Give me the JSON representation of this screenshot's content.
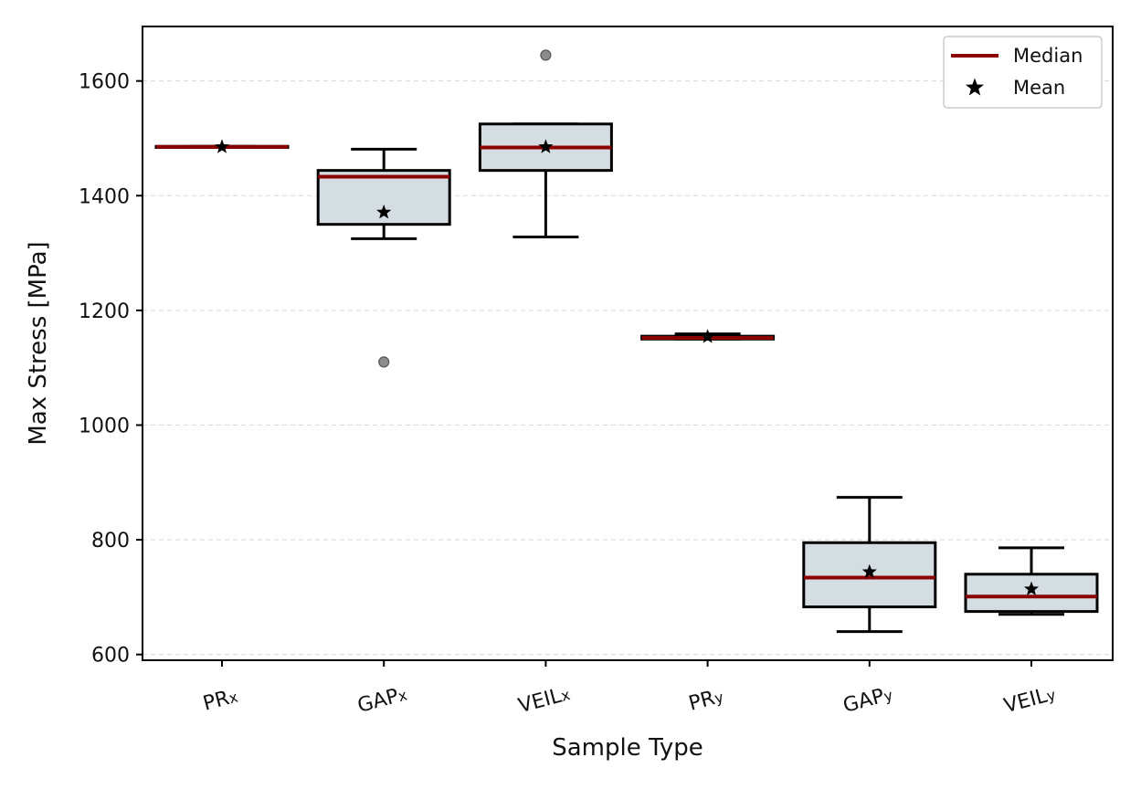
{
  "chart_data": {
    "type": "box",
    "xlabel": "Sample Type",
    "ylabel": "Max Stress [MPa]",
    "ylim": [
      590,
      1695
    ],
    "yticks": [
      600,
      800,
      1000,
      1200,
      1400,
      1600
    ],
    "grid": "y-dashed",
    "legend": {
      "placement": "top-right",
      "entries": [
        {
          "label": "Median",
          "marker": "line"
        },
        {
          "label": "Mean",
          "marker": "star"
        }
      ]
    },
    "colors": {
      "box_fill": "#d3dde2",
      "box_edge": "#000000",
      "median": "#8b0000",
      "mean": "#000000",
      "outlier": "#8c8c8c",
      "grid": "#d9d9d9"
    },
    "categories": [
      {
        "base": "PR",
        "sub": "x"
      },
      {
        "base": "GAP",
        "sub": "x"
      },
      {
        "base": "VEIL",
        "sub": "x"
      },
      {
        "base": "PR",
        "sub": "y"
      },
      {
        "base": "GAP",
        "sub": "y"
      },
      {
        "base": "VEIL",
        "sub": "y"
      }
    ],
    "boxes": [
      {
        "whisker_low": 1484,
        "q1": 1484,
        "median": 1485,
        "q3": 1486,
        "whisker_high": 1486,
        "mean": 1485,
        "outliers": []
      },
      {
        "whisker_low": 1325,
        "q1": 1350,
        "median": 1433,
        "q3": 1444,
        "whisker_high": 1481,
        "mean": 1371,
        "outliers": [
          1110
        ]
      },
      {
        "whisker_low": 1328,
        "q1": 1444,
        "median": 1484,
        "q3": 1525,
        "whisker_high": 1525,
        "mean": 1485,
        "outliers": [
          1645
        ]
      },
      {
        "whisker_low": 1150,
        "q1": 1150,
        "median": 1152,
        "q3": 1155,
        "whisker_high": 1159,
        "mean": 1154,
        "outliers": []
      },
      {
        "whisker_low": 640,
        "q1": 683,
        "median": 734,
        "q3": 795,
        "whisker_high": 874,
        "mean": 744,
        "outliers": []
      },
      {
        "whisker_low": 670,
        "q1": 675,
        "median": 701,
        "q3": 740,
        "whisker_high": 786,
        "mean": 714,
        "outliers": []
      }
    ]
  }
}
